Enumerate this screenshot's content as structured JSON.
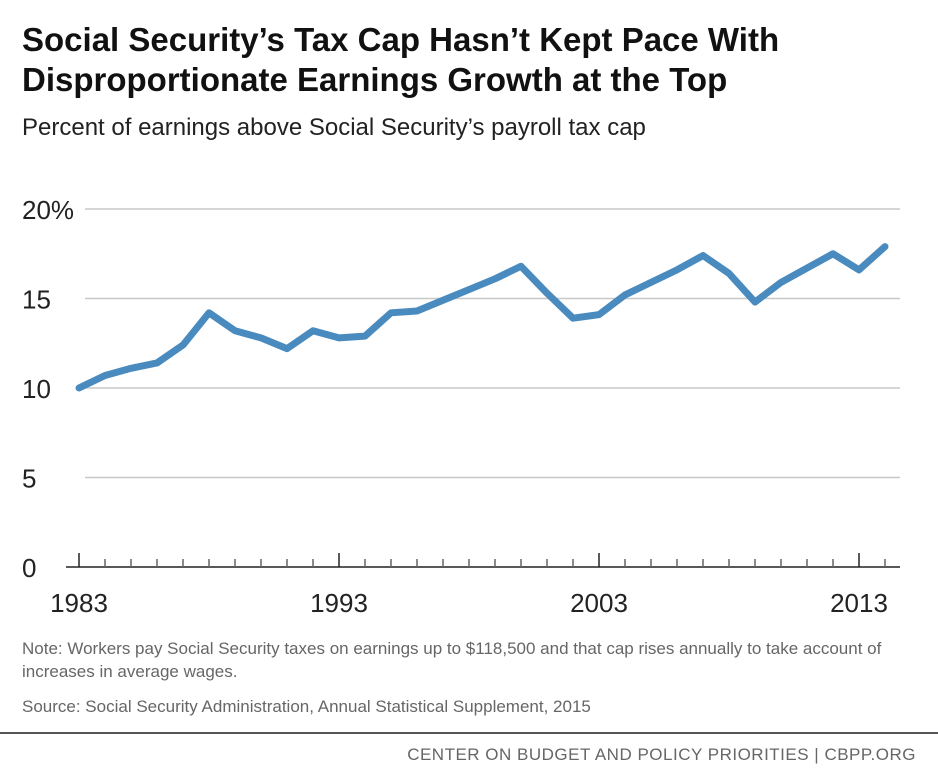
{
  "chart_data": {
    "type": "line",
    "title": "Social Security’s Tax Cap Hasn’t Kept Pace With Disproportionate Earnings Growth at the Top",
    "subtitle": "Percent of earnings above Social Security’s payroll tax cap",
    "x": [
      1983,
      1984,
      1985,
      1986,
      1987,
      1988,
      1989,
      1990,
      1991,
      1992,
      1993,
      1994,
      1995,
      1996,
      1997,
      1998,
      1999,
      2000,
      2001,
      2002,
      2003,
      2004,
      2005,
      2006,
      2007,
      2008,
      2009,
      2010,
      2011,
      2012,
      2013,
      2014
    ],
    "values": [
      10.0,
      10.7,
      11.1,
      11.4,
      12.4,
      14.2,
      13.2,
      12.8,
      12.2,
      13.2,
      12.8,
      12.9,
      14.2,
      14.3,
      14.9,
      15.5,
      16.1,
      16.8,
      15.3,
      13.9,
      14.1,
      15.2,
      15.9,
      16.6,
      17.4,
      16.4,
      14.8,
      15.9,
      16.7,
      17.5,
      16.6,
      17.9
    ],
    "ylim": [
      0,
      20
    ],
    "xlim": [
      1983,
      2014
    ],
    "y_ticks": [
      0,
      5,
      10,
      15,
      20
    ],
    "y_tick_labels": [
      "0",
      "5",
      "10",
      "15",
      "20%"
    ],
    "x_ticks": [
      1983,
      1993,
      2003,
      2013
    ],
    "x_tick_labels": [
      "1983",
      "1993",
      "2003",
      "2013"
    ],
    "grid": true,
    "line_color": "#4a8bbf"
  },
  "note": "Note: Workers pay Social Security taxes on earnings up to $118,500 and that cap rises annually to take account of increases in average wages.",
  "source": "Source: Social Security Administration, Annual Statistical Supplement, 2015",
  "footer": "CENTER ON BUDGET AND POLICY PRIORITIES | CBPP.ORG"
}
